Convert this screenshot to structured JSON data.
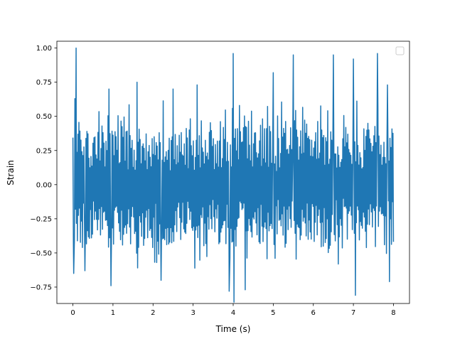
{
  "chart_data": {
    "type": "line",
    "title": "",
    "xlabel": "Time (s)",
    "ylabel": "Strain",
    "xlim": [
      -0.4,
      8.4
    ],
    "ylim": [
      -0.87,
      1.05
    ],
    "x_ticks": [
      0,
      1,
      2,
      3,
      4,
      5,
      6,
      7,
      8
    ],
    "x_tick_labels": [
      "0",
      "1",
      "2",
      "3",
      "4",
      "5",
      "6",
      "7",
      "8"
    ],
    "y_ticks": [
      -0.75,
      -0.5,
      -0.25,
      0.0,
      0.25,
      0.5,
      0.75,
      1.0
    ],
    "y_tick_labels": [
      "−0.75",
      "−0.50",
      "−0.25",
      "0.00",
      "0.25",
      "0.50",
      "0.75",
      "1.00"
    ],
    "grid": false,
    "legend": {
      "visible": true,
      "placement": "top-right",
      "entries": []
    },
    "series": [
      {
        "color": "#1f77b4",
        "x_start": 0.0,
        "x_end": 8.0,
        "n_points": 640,
        "typical_range": [
          -0.45,
          0.45
        ],
        "peaks": [
          {
            "x": 0.08,
            "y": 1.0
          },
          {
            "x": 0.05,
            "y": 0.63
          },
          {
            "x": 0.3,
            "y": 0.71
          },
          {
            "x": 0.9,
            "y": 0.7
          },
          {
            "x": 1.6,
            "y": 0.75
          },
          {
            "x": 2.5,
            "y": 0.7
          },
          {
            "x": 3.1,
            "y": 0.73
          },
          {
            "x": 4.0,
            "y": 0.96
          },
          {
            "x": 5.0,
            "y": 0.82
          },
          {
            "x": 5.5,
            "y": 0.95
          },
          {
            "x": 6.5,
            "y": 0.95
          },
          {
            "x": 7.0,
            "y": 0.92
          },
          {
            "x": 7.6,
            "y": 0.96
          },
          {
            "x": 7.85,
            "y": 0.73
          }
        ],
        "troughs": [
          {
            "x": 0.02,
            "y": -0.65
          },
          {
            "x": 0.3,
            "y": -0.63
          },
          {
            "x": 0.95,
            "y": -0.74
          },
          {
            "x": 2.2,
            "y": -0.7
          },
          {
            "x": 3.9,
            "y": -0.78
          },
          {
            "x": 4.02,
            "y": -0.86
          },
          {
            "x": 4.3,
            "y": -0.77
          },
          {
            "x": 7.05,
            "y": -0.81
          },
          {
            "x": 7.9,
            "y": -0.71
          }
        ]
      }
    ]
  }
}
